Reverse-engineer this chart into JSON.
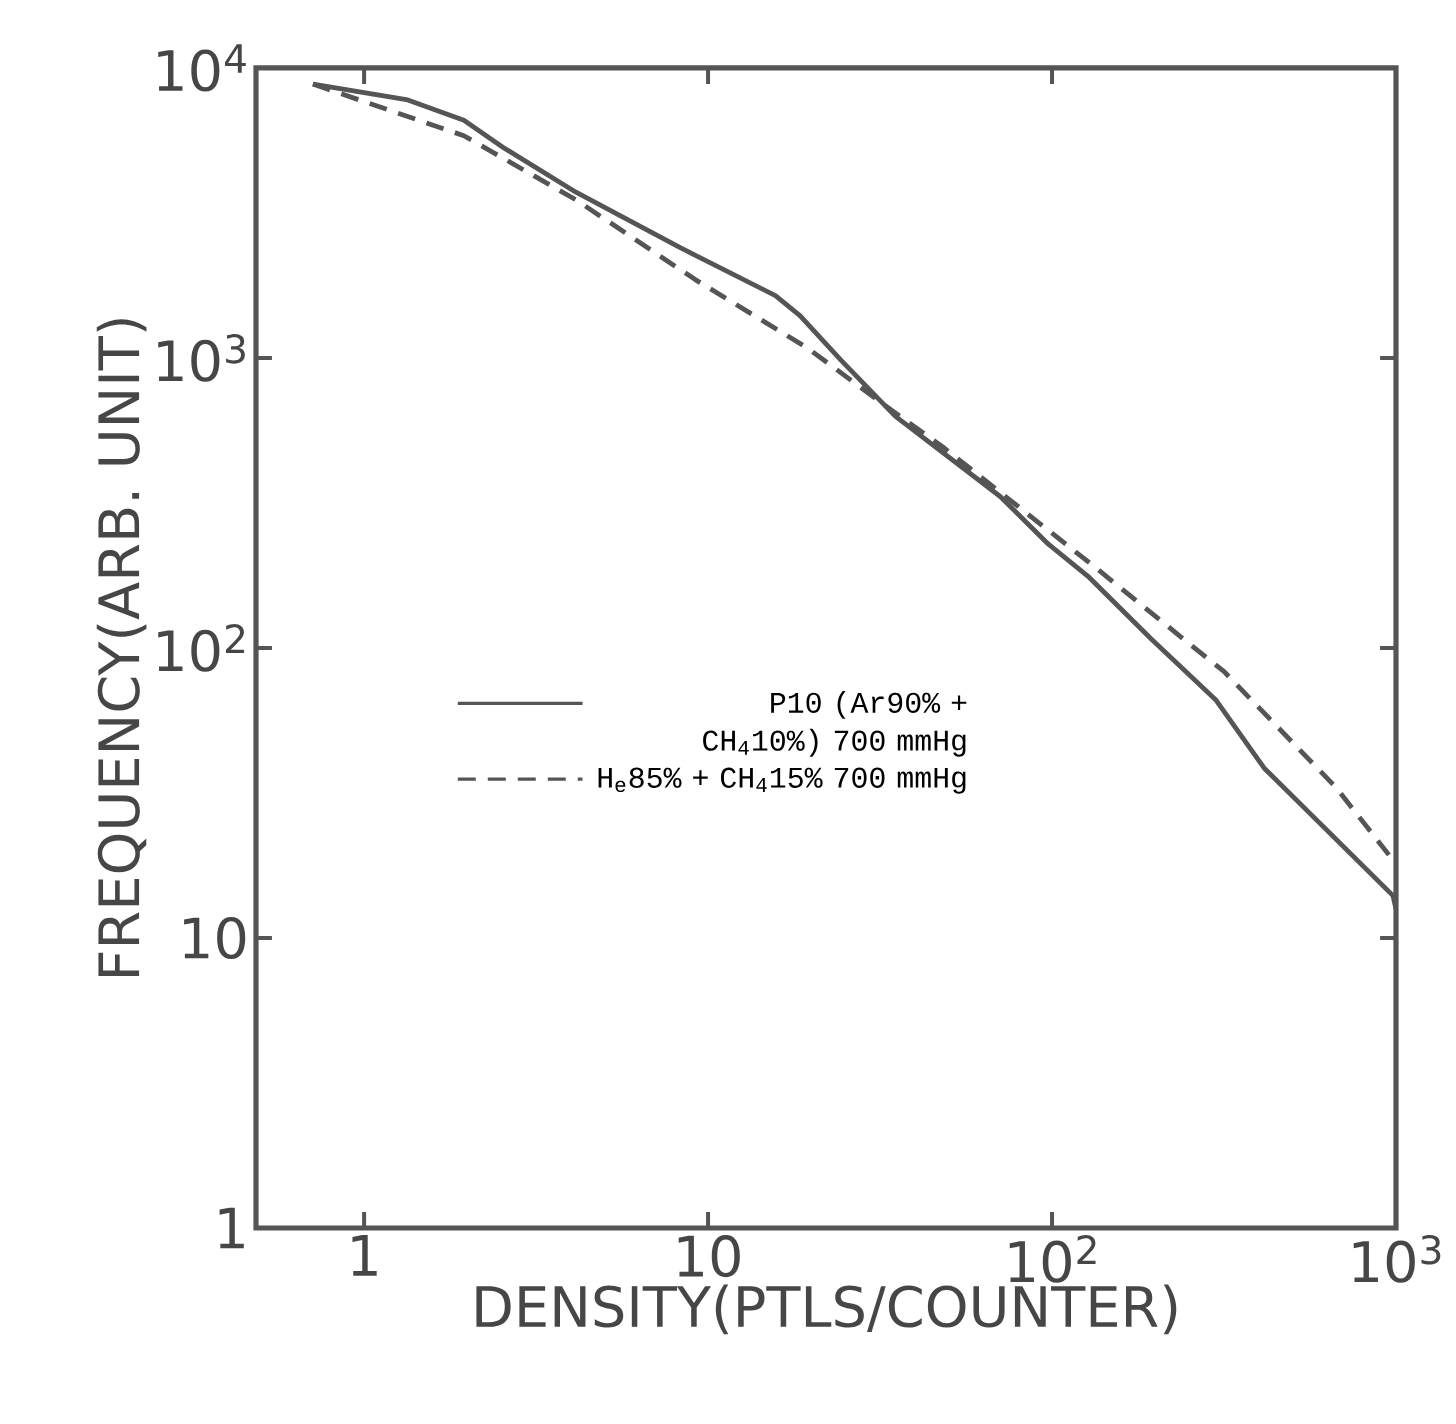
{
  "chart_data": {
    "type": "line",
    "xlabel": "DENSITY(PTLS/COUNTER)",
    "ylabel": "FREQUENCY(ARB. UNIT)",
    "log": "xy",
    "xlim": [
      0.485,
      1000
    ],
    "ylim": [
      1,
      10000
    ],
    "xticks": [
      1,
      10,
      {
        "value": 100,
        "label": "10$^{2}$"
      },
      {
        "value": 1000,
        "label": "10$^{3}$"
      }
    ],
    "yticks": [
      1,
      10,
      {
        "value": 100,
        "label": "10$^{2}$"
      },
      {
        "value": 1000,
        "label": "10$^{3}$"
      },
      {
        "value": 10000,
        "label": "10$^{4}$"
      }
    ],
    "grid": false,
    "legend": "center",
    "marker": "none",
    "series": [
      {
        "name": "P10 (Ar90% + CH$_{4}$10%) 700 mmHg",
        "color": "#555555",
        "line_style": "solid",
        "x": [
          0.71,
          1.34,
          1.95,
          2.55,
          4.13,
          8.3,
          15.7,
          18.5,
          24.3,
          35,
          70.7,
          97.6,
          127,
          195,
          300,
          414,
          980,
          1000
        ],
        "values": [
          8800,
          7760,
          6600,
          5300,
          3730,
          2400,
          1640,
          1400,
          985,
          630,
          333,
          228,
          177,
          107,
          66,
          38.5,
          14,
          12.6
        ]
      },
      {
        "name": "H$_{e}$85% + CH$_{4}$15% 700 mmHg",
        "color": "#555555",
        "line_style": "dashed",
        "x": [
          0.71,
          1.95,
          4.13,
          9.2,
          19.5,
          33.3,
          48.5,
          134,
          242,
          316,
          670,
          1000
        ],
        "values": [
          8800,
          5840,
          3510,
          1860,
          1080,
          675,
          490,
          189,
          107,
          83,
          33,
          18
        ]
      }
    ]
  }
}
